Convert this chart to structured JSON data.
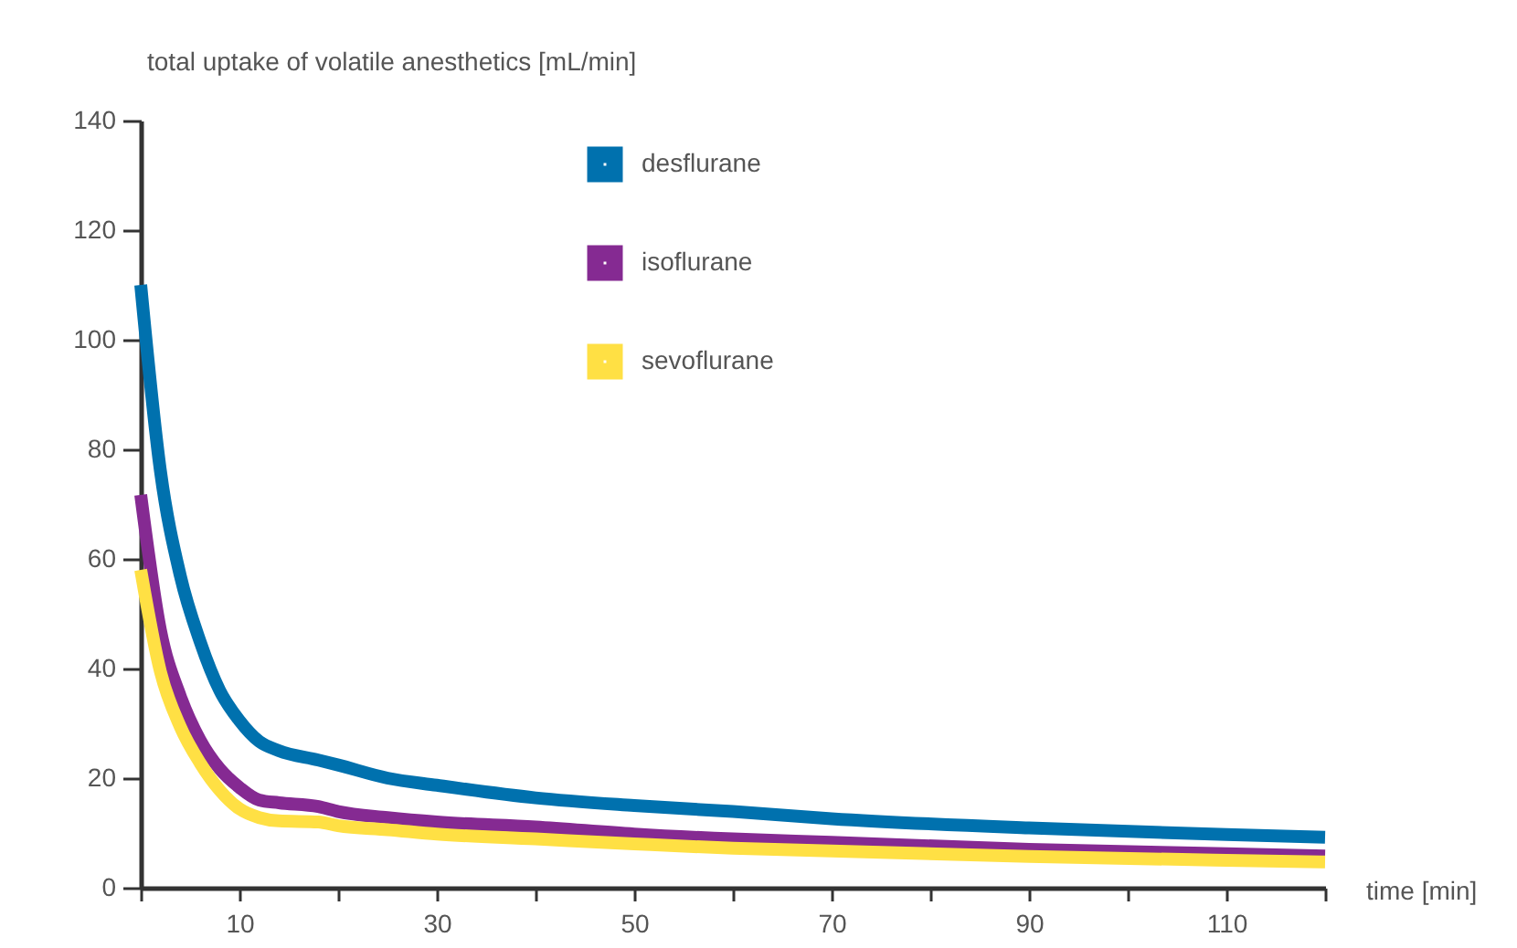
{
  "chart_data": {
    "type": "line",
    "xlabel": "time [min]",
    "ylabel": "total uptake of volatile anesthetics [mL/min]",
    "x": [
      0,
      2,
      4,
      6,
      8,
      10,
      12,
      14,
      18,
      20,
      25,
      30,
      40,
      50,
      60,
      70,
      90,
      110,
      120
    ],
    "series": [
      {
        "name": "desflurane",
        "color": "#0071ae",
        "values": [
          110,
          76,
          57,
          45,
          36,
          30.5,
          26.7,
          25,
          23.3,
          22.4,
          20,
          18.7,
          16.4,
          15,
          13.9,
          12.6,
          10.9,
          9.7,
          9.2
        ]
      },
      {
        "name": "isoflurane",
        "color": "#852a92",
        "values": [
          71.7,
          47,
          35,
          27,
          21.7,
          18.3,
          16,
          15.5,
          14.8,
          13.9,
          12.8,
          12,
          11.1,
          9.8,
          8.9,
          8.3,
          7,
          6.2,
          5.8
        ]
      },
      {
        "name": "sevoflurane",
        "color": "#ffe044",
        "values": [
          58,
          39.4,
          29.4,
          22.8,
          17.8,
          14.4,
          12.8,
          12.2,
          12,
          11.3,
          10.6,
          9.8,
          8.9,
          8,
          7.2,
          6.7,
          5.7,
          5,
          4.7
        ]
      }
    ],
    "xlim": [
      0,
      120
    ],
    "ylim": [
      0,
      140
    ],
    "xticks": [
      {
        "value": 0,
        "label": null
      },
      10,
      {
        "value": 20,
        "label": null
      },
      30,
      {
        "value": 40,
        "label": null
      },
      50,
      {
        "value": 60,
        "label": null
      },
      70,
      {
        "value": 80,
        "label": null
      },
      90,
      {
        "value": 100,
        "label": null
      },
      110,
      {
        "value": 120,
        "label": null
      }
    ],
    "yticks": [
      0,
      20,
      40,
      60,
      80,
      100,
      120,
      140
    ],
    "grid": false,
    "legend": "top",
    "line_style": "solid",
    "marker": "none"
  }
}
